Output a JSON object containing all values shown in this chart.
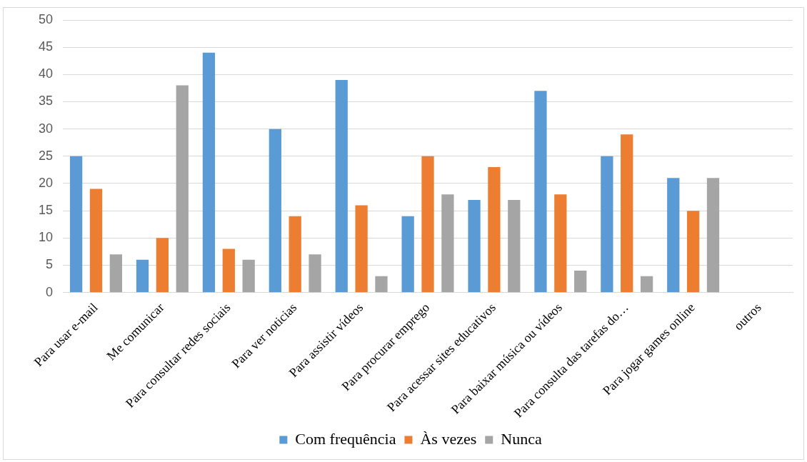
{
  "chart_data": {
    "type": "bar",
    "categories": [
      "Para usar e-mail",
      "Me comunicar",
      "Para consultar redes sociais",
      "Para ver noticias",
      "Para assistir vídeos",
      "Para procurar emprego",
      "Para acessar sites educativos",
      "Para baixar música ou vídeos",
      "Para consulta das tarefas do…",
      "Para jogar games online",
      "outros"
    ],
    "series": [
      {
        "name": "Com frequência",
        "color": "#5b9bd5",
        "values": [
          25,
          6,
          44,
          30,
          39,
          14,
          17,
          37,
          25,
          21,
          null
        ]
      },
      {
        "name": "Às vezes",
        "color": "#ed7d31",
        "values": [
          19,
          10,
          8,
          14,
          16,
          25,
          23,
          18,
          29,
          15,
          null
        ]
      },
      {
        "name": "Nunca",
        "color": "#a5a5a5",
        "values": [
          7,
          38,
          6,
          7,
          3,
          18,
          17,
          4,
          3,
          21,
          null
        ]
      }
    ],
    "ylim": [
      0,
      50
    ],
    "yticks": [
      0,
      5,
      10,
      15,
      20,
      25,
      30,
      35,
      40,
      45,
      50
    ],
    "grid": "y",
    "legend": "bottom"
  }
}
